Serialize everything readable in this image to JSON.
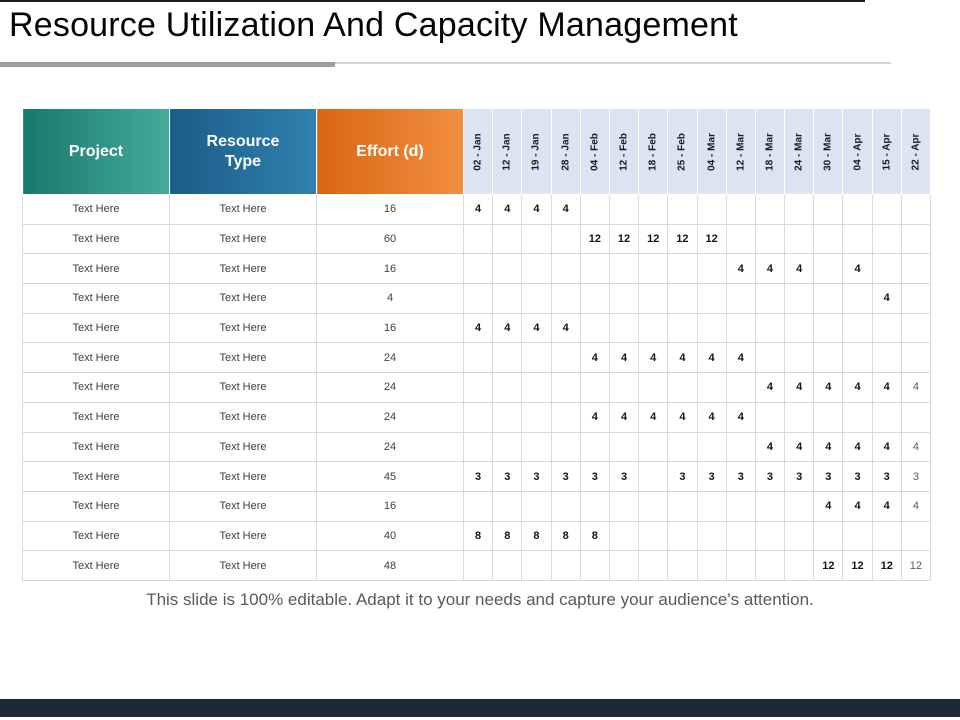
{
  "slide": {
    "title": "Resource Utilization And Capacity Management",
    "footer": "This slide is 100% editable. Adapt it to your needs and capture your audience's attention."
  },
  "colors": {
    "teal-dark": "#17796d",
    "teal-light": "#45aa9c",
    "blue-dark": "#1c5c88",
    "blue-light": "#2f81af",
    "orange-dark": "#d96613",
    "orange-light": "#f18f40",
    "date-bg": "#dbe5f1",
    "grid": "#d9d9d9",
    "divider-dark": "#9e9e9e",
    "divider-light": "#d2d2d2",
    "bar": "#1d2935"
  },
  "table": {
    "columns": [
      {
        "key": "project",
        "label": "Project"
      },
      {
        "key": "resource",
        "label": "Resource Type"
      },
      {
        "key": "effort",
        "label": "Effort (d)"
      }
    ],
    "date_columns": [
      "02 - Jan",
      "12 - Jan",
      "19 - Jan",
      "28 - Jan",
      "04 - Feb",
      "12 - Feb",
      "18 - Feb",
      "25 - Feb",
      "04 - Mar",
      "12 - Mar",
      "18 - Mar",
      "24 - Mar",
      "30 - Mar",
      "04 - Apr",
      "15 - Apr",
      "22 - Apr"
    ],
    "rows": [
      {
        "project": "Text Here",
        "resource": "Text Here",
        "effort": "16",
        "cells": [
          "4",
          "4",
          "4",
          "4",
          "",
          "",
          "",
          "",
          "",
          "",
          "",
          "",
          "",
          "",
          "",
          ""
        ]
      },
      {
        "project": "Text Here",
        "resource": "Text Here",
        "effort": "60",
        "cells": [
          "",
          "",
          "",
          "",
          "12",
          "12",
          "12",
          "12",
          "12",
          "",
          "",
          "",
          "",
          "",
          "",
          ""
        ]
      },
      {
        "project": "Text Here",
        "resource": "Text Here",
        "effort": "16",
        "cells": [
          "",
          "",
          "",
          "",
          "",
          "",
          "",
          "",
          "",
          "4",
          "4",
          "4",
          "",
          "4",
          "",
          ""
        ]
      },
      {
        "project": "Text Here",
        "resource": "Text Here",
        "effort": "4",
        "cells": [
          "",
          "",
          "",
          "",
          "",
          "",
          "",
          "",
          "",
          "",
          "",
          "",
          "",
          "",
          "4",
          ""
        ]
      },
      {
        "project": "Text Here",
        "resource": "Text Here",
        "effort": "16",
        "cells": [
          "4",
          "4",
          "4",
          "4",
          "",
          "",
          "",
          "",
          "",
          "",
          "",
          "",
          "",
          "",
          "",
          ""
        ]
      },
      {
        "project": "Text Here",
        "resource": "Text Here",
        "effort": "24",
        "cells": [
          "",
          "",
          "",
          "",
          "4",
          "4",
          "4",
          "4",
          "4",
          "4",
          "",
          "",
          "",
          "",
          "",
          ""
        ]
      },
      {
        "project": "Text Here",
        "resource": "Text Here",
        "effort": "24",
        "cells": [
          "",
          "",
          "",
          "",
          "",
          "",
          "",
          "",
          "",
          "",
          "4",
          "4",
          "4",
          "4",
          "4",
          "4"
        ]
      },
      {
        "project": "Text Here",
        "resource": "Text Here",
        "effort": "24",
        "cells": [
          "",
          "",
          "",
          "",
          "4",
          "4",
          "4",
          "4",
          "4",
          "4",
          "",
          "",
          "",
          "",
          "",
          ""
        ]
      },
      {
        "project": "Text Here",
        "resource": "Text Here",
        "effort": "24",
        "cells": [
          "",
          "",
          "",
          "",
          "",
          "",
          "",
          "",
          "",
          "",
          "4",
          "4",
          "4",
          "4",
          "4",
          "4"
        ]
      },
      {
        "project": "Text Here",
        "resource": "Text Here",
        "effort": "45",
        "cells": [
          "3",
          "3",
          "3",
          "3",
          "3",
          "3",
          "",
          "3",
          "3",
          "3",
          "3",
          "3",
          "3",
          "3",
          "3",
          "3"
        ]
      },
      {
        "project": "Text Here",
        "resource": "Text Here",
        "effort": "16",
        "cells": [
          "",
          "",
          "",
          "",
          "",
          "",
          "",
          "",
          "",
          "",
          "",
          "",
          "4",
          "4",
          "4",
          "4"
        ]
      },
      {
        "project": "Text Here",
        "resource": "Text Here",
        "effort": "40",
        "cells": [
          "8",
          "8",
          "8",
          "8",
          "8",
          "",
          "",
          "",
          "",
          "",
          "",
          "",
          "",
          "",
          "",
          ""
        ]
      },
      {
        "project": "Text Here",
        "resource": "Text Here",
        "effort": "48",
        "cells": [
          "",
          "",
          "",
          "",
          "",
          "",
          "",
          "",
          "",
          "",
          "",
          "",
          "12",
          "12",
          "12",
          "12"
        ]
      }
    ]
  }
}
